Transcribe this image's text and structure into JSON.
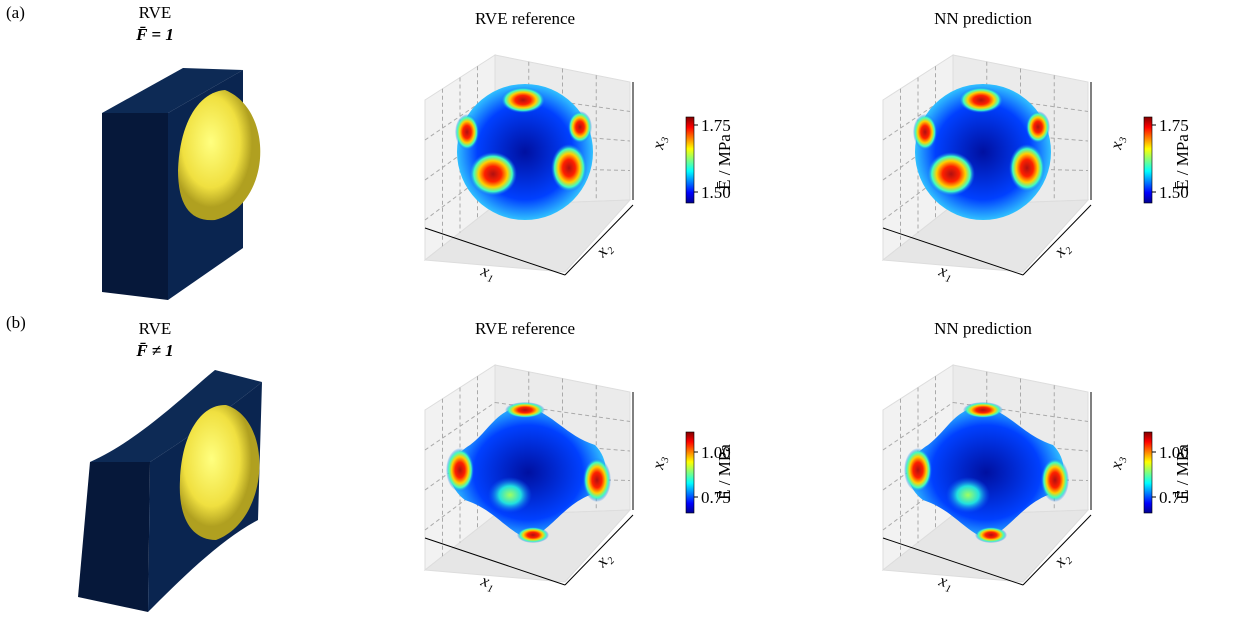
{
  "rows": [
    {
      "label": "(a)",
      "rve": {
        "title": "RVE",
        "condition": "F̄ = 1"
      },
      "plots": [
        {
          "title": "RVE reference",
          "axes": [
            "x₁",
            "x₂",
            "x₃"
          ],
          "colorbar": {
            "label": "Ē / MPa",
            "ticks": [
              "1.75",
              "1.50"
            ]
          }
        },
        {
          "title": "NN prediction",
          "axes": [
            "x₁",
            "x₂",
            "x₃"
          ],
          "colorbar": {
            "label": "Ē / MPa",
            "ticks": [
              "1.75",
              "1.50"
            ]
          }
        }
      ]
    },
    {
      "label": "(b)",
      "rve": {
        "title": "RVE",
        "condition": "F̄ ≠ 1"
      },
      "plots": [
        {
          "title": "RVE reference",
          "axes": [
            "x₁",
            "x₂",
            "x₃"
          ],
          "colorbar": {
            "label": "Ē / MPa",
            "ticks": [
              "1.00",
              "0.75"
            ]
          }
        },
        {
          "title": "NN prediction",
          "axes": [
            "x₁",
            "x₂",
            "x₃"
          ],
          "colorbar": {
            "label": "Ē / MPa",
            "ticks": [
              "1.00",
              "0.75"
            ]
          }
        }
      ]
    }
  ]
}
